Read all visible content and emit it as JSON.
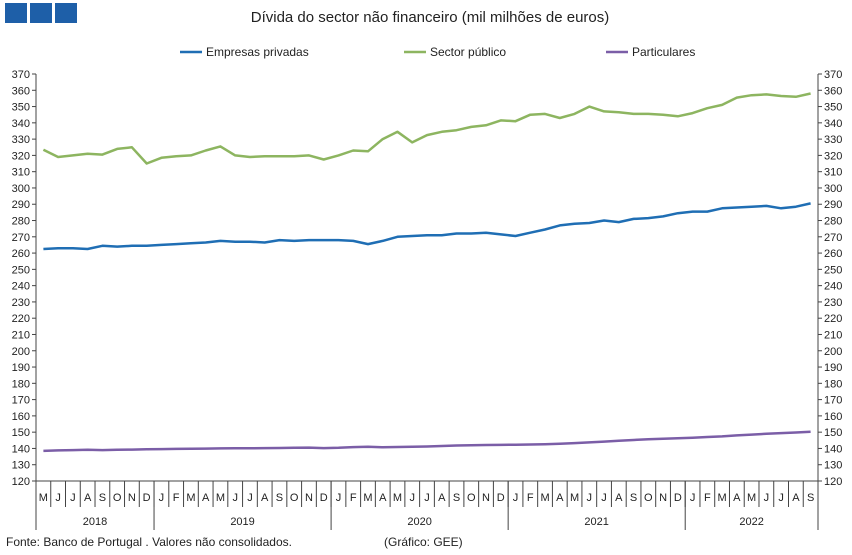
{
  "chart_data": {
    "type": "line",
    "title": "Dívida do sector não financeiro (mil milhões de euros)",
    "xlabel": "",
    "ylabel": "",
    "ylim": [
      120,
      370
    ],
    "yticks": [
      120,
      130,
      140,
      150,
      160,
      170,
      180,
      190,
      200,
      210,
      220,
      230,
      240,
      250,
      260,
      270,
      280,
      290,
      300,
      310,
      320,
      330,
      340,
      350,
      360,
      370
    ],
    "legend": "top",
    "grid": false,
    "month_labels": [
      "M",
      "J",
      "J",
      "A",
      "S",
      "O",
      "N",
      "D",
      "J",
      "F",
      "M",
      "A",
      "M",
      "J",
      "J",
      "A",
      "S",
      "O",
      "N",
      "D",
      "J",
      "F",
      "M",
      "A",
      "M",
      "J",
      "J",
      "A",
      "S",
      "O",
      "N",
      "D",
      "J",
      "F",
      "M",
      "A",
      "M",
      "J",
      "J",
      "A",
      "S",
      "O",
      "N",
      "D",
      "J",
      "F",
      "M",
      "A",
      "M",
      "J",
      "J",
      "A",
      "S"
    ],
    "years": [
      {
        "label": "2018",
        "start": 0,
        "count": 8
      },
      {
        "label": "2019",
        "start": 8,
        "count": 12
      },
      {
        "label": "2020",
        "start": 20,
        "count": 12
      },
      {
        "label": "2021",
        "start": 32,
        "count": 12
      },
      {
        "label": "2022",
        "start": 44,
        "count": 9
      }
    ],
    "series": [
      {
        "name": "Empresas privadas",
        "color": "#1f6eb4",
        "values": [
          262.5,
          263,
          263,
          262.5,
          264.5,
          264,
          264.5,
          264.5,
          265,
          265.5,
          266,
          266.5,
          267.5,
          267,
          267,
          266.5,
          268,
          267.5,
          268,
          268,
          268,
          267.5,
          265.5,
          267.5,
          270,
          270.5,
          271,
          271,
          272,
          272,
          272.5,
          271.5,
          270.5,
          272.5,
          274.5,
          277,
          278,
          278.5,
          280,
          279,
          281,
          281.5,
          282.5,
          284.5,
          285.5,
          285.5,
          287.5,
          288,
          288.5,
          289,
          287.5,
          288.5,
          290.5
        ]
      },
      {
        "name": "Sector público",
        "color": "#8db560",
        "values": [
          323.5,
          319,
          320,
          321,
          320.5,
          324,
          325,
          315,
          318.5,
          319.5,
          320,
          323,
          325.5,
          320,
          319,
          319.5,
          319.5,
          319.5,
          320,
          317.5,
          320,
          323,
          322.5,
          330,
          334.5,
          328,
          332.5,
          334.5,
          335.5,
          337.5,
          338.5,
          341.5,
          341,
          345,
          345.5,
          343,
          345.5,
          350,
          347,
          346.5,
          345.5,
          345.5,
          345,
          344,
          346,
          349,
          351,
          355.5,
          357,
          357.5,
          356.5,
          356,
          358
        ]
      },
      {
        "name": "Particulares",
        "color": "#7b5ea7",
        "values": [
          138.5,
          138.8,
          139,
          139.2,
          139,
          139.2,
          139.3,
          139.5,
          139.6,
          139.7,
          139.8,
          139.9,
          140,
          140.1,
          140.1,
          140.2,
          140.3,
          140.4,
          140.5,
          140.2,
          140.4,
          140.8,
          141,
          140.7,
          140.9,
          141,
          141.2,
          141.5,
          141.8,
          142,
          142.1,
          142.2,
          142.3,
          142.4,
          142.6,
          142.9,
          143.3,
          143.7,
          144.2,
          144.7,
          145.2,
          145.7,
          146,
          146.3,
          146.6,
          147,
          147.4,
          148,
          148.5,
          149,
          149.4,
          149.8,
          150.3
        ]
      }
    ]
  },
  "footer": {
    "source": "Fonte: Banco de Portugal . Valores não consolidados.",
    "credit": "(Gráfico: GEE)"
  }
}
